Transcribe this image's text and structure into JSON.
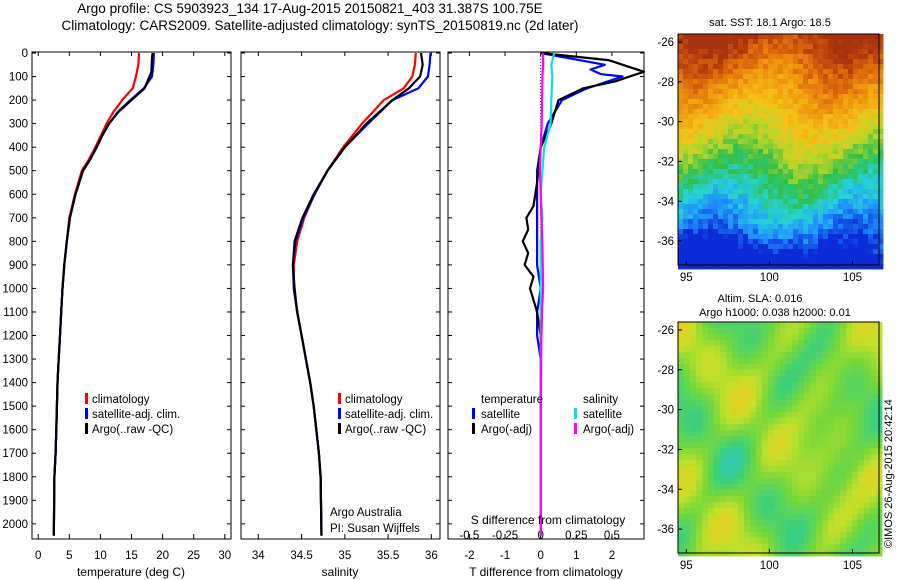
{
  "header": {
    "title_line_1": "Argo profile: CS 5903923_134 17-Aug-2015 20150821_403 31.387S 100.75E",
    "title_line_2": "Climatology: CARS2009. Satellite-adjusted climatology: synTS_20150819.nc (2d later)"
  },
  "depth_axis": {
    "ticks": [
      0,
      100,
      200,
      300,
      400,
      500,
      600,
      700,
      800,
      900,
      1000,
      1100,
      1200,
      1300,
      1400,
      1500,
      1600,
      1700,
      1800,
      1900,
      2000
    ],
    "range": [
      0,
      2060
    ],
    "inverted": true
  },
  "colors": {
    "climatology": "#ff0000",
    "satellite": "#0000ff",
    "argo": "#000000",
    "satellite_salinity": "#00e5e5",
    "argo_salinity_diff": "#ff00ff"
  },
  "chart_data": [
    {
      "id": "temperature",
      "type": "line",
      "xlabel": "temperature (deg C)",
      "xlim": [
        -1,
        31
      ],
      "xticks": [
        0,
        5,
        10,
        15,
        20,
        25,
        30
      ],
      "legend": {
        "placement": "lower-center",
        "entries": [
          "climatology",
          "satellite-adj. clim.",
          "Argo(..raw -QC)"
        ]
      },
      "series": [
        {
          "key": "climatology",
          "color": "#ff0000",
          "x": [
            16.2,
            16.1,
            15.7,
            15.2,
            13.5,
            12.1,
            11.0,
            10.1,
            9.2,
            8.2,
            7.0,
            5.9,
            5.0,
            4.6,
            4.2,
            3.9,
            3.7,
            3.5,
            3.3,
            3.1,
            3.0,
            2.9,
            2.8,
            2.6,
            2.5
          ],
          "depth": [
            0,
            50,
            100,
            150,
            200,
            250,
            300,
            350,
            400,
            450,
            500,
            600,
            700,
            800,
            900,
            1000,
            1100,
            1200,
            1300,
            1400,
            1500,
            1600,
            1700,
            1800,
            2050
          ]
        },
        {
          "key": "satellite",
          "color": "#0000ff",
          "x": [
            18.6,
            18.5,
            18.3,
            17.0,
            14.8,
            12.8,
            11.4,
            10.3,
            9.4,
            8.4,
            7.2,
            6.0,
            5.1,
            4.6,
            4.2,
            3.9,
            3.7,
            3.5,
            3.3,
            3.1,
            3.0,
            2.9,
            2.8,
            2.6,
            2.5
          ],
          "depth": [
            0,
            50,
            100,
            150,
            200,
            250,
            300,
            350,
            400,
            450,
            500,
            600,
            700,
            800,
            900,
            1000,
            1100,
            1200,
            1300,
            1400,
            1500,
            1600,
            1700,
            1800,
            2050
          ]
        },
        {
          "key": "argo",
          "color": "#000000",
          "x": [
            18.4,
            18.3,
            18.2,
            17.1,
            15.0,
            12.9,
            11.4,
            10.3,
            9.4,
            8.4,
            7.2,
            6.0,
            5.1,
            4.6,
            4.2,
            3.9,
            3.7,
            3.5,
            3.3,
            3.1,
            3.0,
            2.9,
            2.8,
            2.6,
            2.5
          ],
          "depth": [
            0,
            20,
            80,
            150,
            200,
            250,
            300,
            350,
            400,
            450,
            500,
            600,
            700,
            800,
            900,
            1000,
            1100,
            1200,
            1300,
            1400,
            1500,
            1600,
            1700,
            1800,
            2050
          ]
        }
      ]
    },
    {
      "id": "salinity",
      "type": "line",
      "xlabel": "salinity",
      "xlim": [
        33.8,
        36.1
      ],
      "xticks": [
        34,
        34.5,
        35,
        35.5,
        36
      ],
      "legend": {
        "placement": "lower-center",
        "entries": [
          "climatology",
          "satellite-adj. clim.",
          "Argo(..raw -QC)"
        ]
      },
      "annotation": {
        "line1": "Argo Australia",
        "line2": "PI: Susan Wijffels"
      },
      "series": [
        {
          "key": "climatology",
          "color": "#ff0000",
          "x": [
            35.82,
            35.81,
            35.78,
            35.68,
            35.45,
            35.2,
            34.98,
            34.8,
            34.65,
            34.53,
            34.45,
            34.41,
            34.41,
            34.45,
            34.5,
            34.55,
            34.6,
            34.64,
            34.67,
            34.7,
            34.72,
            34.73
          ],
          "depth": [
            0,
            50,
            100,
            150,
            200,
            300,
            400,
            500,
            600,
            700,
            800,
            900,
            1000,
            1100,
            1200,
            1300,
            1400,
            1500,
            1600,
            1700,
            1800,
            2050
          ]
        },
        {
          "key": "satellite",
          "color": "#0000ff",
          "x": [
            35.99,
            35.98,
            35.96,
            35.85,
            35.55,
            35.27,
            35.0,
            34.8,
            34.65,
            34.52,
            34.43,
            34.4,
            34.41,
            34.45,
            34.5,
            34.55,
            34.6,
            34.64,
            34.67,
            34.7,
            34.72,
            34.73
          ],
          "depth": [
            0,
            50,
            100,
            150,
            200,
            300,
            400,
            500,
            600,
            700,
            800,
            900,
            1000,
            1100,
            1200,
            1300,
            1400,
            1500,
            1600,
            1700,
            1800,
            2050
          ]
        },
        {
          "key": "argo",
          "color": "#000000",
          "x": [
            35.88,
            35.9,
            35.87,
            35.74,
            35.55,
            35.25,
            35.0,
            34.8,
            34.64,
            34.51,
            34.42,
            34.4,
            34.42,
            34.45,
            34.5,
            34.55,
            34.6,
            34.64,
            34.67,
            34.7,
            34.72,
            34.73
          ],
          "depth": [
            0,
            50,
            100,
            150,
            200,
            300,
            400,
            500,
            600,
            700,
            800,
            900,
            1000,
            1100,
            1200,
            1300,
            1400,
            1500,
            1600,
            1700,
            1800,
            2050
          ]
        }
      ]
    },
    {
      "id": "differences",
      "type": "line",
      "xlabel": "T difference from climatology",
      "xlabel_top": "S difference from climatology",
      "xlim": [
        -2.6,
        2.9
      ],
      "xticks": [
        -2,
        -1,
        0,
        1,
        2
      ],
      "top_axis": {
        "label": "S difference from climatology",
        "ticks": [
          -0.5,
          -0.25,
          0,
          0.25,
          0.5
        ]
      },
      "legend": {
        "placement": "lower-center",
        "headers": [
          "temperature",
          "salinity"
        ],
        "entries": [
          "satellite",
          "Argo(-adj)",
          "satellite",
          "Argo(-adj)"
        ]
      },
      "series": [
        {
          "key": "temp_satellite",
          "color": "#0000ff",
          "x": [
            0,
            1.8,
            1.4,
            1.7,
            2.3,
            1.3,
            0.6,
            0.2,
            0,
            -0.1,
            -0.1,
            -0.1,
            -0.1,
            0,
            -0.1,
            -0.1,
            0,
            0,
            0,
            0
          ],
          "depth": [
            0,
            50,
            70,
            90,
            100,
            150,
            200,
            300,
            400,
            500,
            600,
            800,
            900,
            1000,
            1100,
            1200,
            1300,
            1500,
            1800,
            2050
          ]
        },
        {
          "key": "temp_argo",
          "color": "#000000",
          "x": [
            0,
            1.9,
            2.9,
            2.5,
            2.1,
            1.2,
            0.5,
            0.3,
            0,
            -0.1,
            -0.2,
            -0.4,
            -0.35,
            -0.5,
            -0.35,
            -0.45,
            -0.2,
            -0.3,
            -0.1,
            0,
            0,
            0,
            0
          ],
          "depth": [
            0,
            30,
            80,
            100,
            120,
            150,
            200,
            300,
            400,
            550,
            650,
            700,
            750,
            800,
            850,
            900,
            950,
            1000,
            1100,
            1200,
            1500,
            1800,
            2050
          ]
        },
        {
          "key": "sal_satellite",
          "color": "#00e5e5",
          "x": [
            0.38,
            0.3,
            0.33,
            0.3,
            0.28,
            0.1,
            0.05,
            0,
            0.05,
            0,
            0,
            0,
            0,
            0
          ],
          "depth": [
            0,
            50,
            100,
            200,
            300,
            400,
            500,
            600,
            700,
            800,
            1000,
            1200,
            1500,
            2050
          ]
        },
        {
          "key": "sal_argo",
          "color": "#ff00ff",
          "x": [
            0.07,
            0.07,
            0.05,
            0.04,
            0.03,
            0,
            -0.02,
            0,
            0.02,
            0.05,
            0.07,
            0.04,
            0.02,
            0,
            0,
            0
          ],
          "depth": [
            0,
            50,
            100,
            200,
            300,
            400,
            500,
            600,
            700,
            800,
            1000,
            1100,
            1200,
            1500,
            1800,
            2050
          ]
        }
      ]
    },
    {
      "id": "sst-map",
      "type": "heatmap",
      "title": "sat. SST: 18.1  Argo: 18.5",
      "xticks": [
        95,
        100,
        105
      ],
      "yticks": [
        -26,
        -28,
        -30,
        -32,
        -34,
        -36
      ],
      "xlim": [
        94.5,
        106.6
      ],
      "ylim": [
        -37.2,
        -25.6
      ],
      "colorscale": [
        "#0a2bd6",
        "#1f8cff",
        "#26d4d8",
        "#2fbf4a",
        "#b6d62a",
        "#f5c216",
        "#f09a0e",
        "#d9640c",
        "#a8320e"
      ],
      "marker": {
        "lon": 100.75,
        "lat": -31.387
      }
    },
    {
      "id": "sla-map",
      "type": "heatmap",
      "title_line_1": "Altim. SLA: 0.016",
      "title_line_2": "Argo h1000: 0.038  h2000: 0.01",
      "xticks": [
        95,
        100,
        105
      ],
      "yticks": [
        -26,
        -28,
        -30,
        -32,
        -34,
        -36
      ],
      "xlim": [
        94.5,
        106.6
      ],
      "ylim": [
        -37.2,
        -25.6
      ],
      "colorscale": [
        "#2fc9c9",
        "#3cd07a",
        "#78d83a",
        "#c8e02a",
        "#f2c81a",
        "#f08a14"
      ]
    }
  ],
  "credit": "©IMOS 26-Aug-2015 20:42:14"
}
